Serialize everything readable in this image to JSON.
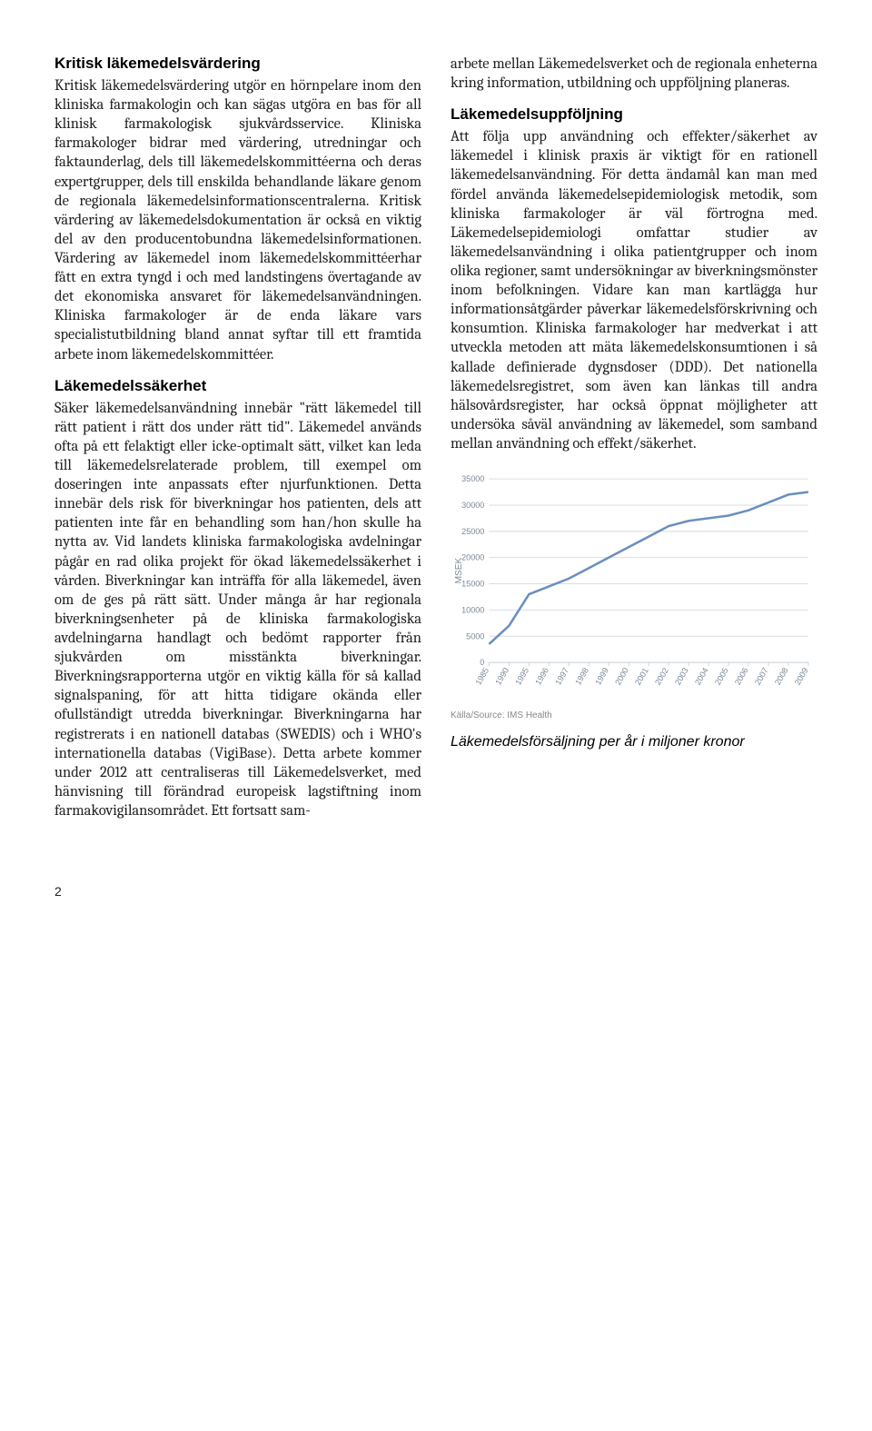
{
  "left": {
    "section1": {
      "heading": "Kritisk läkemedelsvärdering",
      "body": "Kritisk läkemedelsvärdering utgör en hörnpelare inom den kliniska farmakologin och kan sägas utgöra en bas för all klinisk farmakologisk sjukvårdsservice. Kliniska farmakologer bidrar med värdering, utredningar och faktaunderlag, dels till läkemedelskommittéerna och deras expertgrupper, dels till enskilda behandlande läkare genom de regionala läkemedelsinformationscentralerna. Kritisk värdering av läkemedelsdokumentation är också en viktig del av den producentobundna läkemedelsinformationen. Värdering av läkemedel inom läkemedelskommittéerhar fått en extra tyngd i och med landstingens övertagande av det ekonomiska ansvaret för läkemedelsanvändningen. Kliniska farmakologer är de enda läkare vars specialistutbildning bland annat syftar till ett framtida arbete inom läkemedelskommittéer."
    },
    "section2": {
      "heading": "Läkemedelssäkerhet",
      "body": "Säker läkemedelsanvändning innebär \"rätt läkemedel till rätt patient i rätt dos under rätt tid\". Läkemedel används ofta på ett felaktigt eller icke-optimalt sätt, vilket kan leda till läkemedelsrelaterade problem, till exempel om doseringen inte anpassats efter njurfunktionen. Detta innebär dels risk för biverkningar hos patienten, dels att patienten inte får en behandling som han/hon skulle ha nytta av. Vid landets kliniska farmakologiska avdelningar pågår en rad olika projekt för ökad läkemedelssäkerhet i vården. Biverkningar kan inträffa för alla läkemedel, även om de ges på rätt sätt. Under många år har regionala biverkningsenheter på de kliniska farmakologiska avdelningarna handlagt och bedömt rapporter från sjukvården om misstänkta biverkningar. Biverkningsrapporterna utgör en viktig källa för så kallad signalspaning, för att hitta tidigare okända eller ofullständigt utredda biverkningar. Biverkningarna har registrerats i en nationell databas (SWEDIS) och i WHO's internationella databas (VigiBase). Detta arbete kommer under 2012 att centraliseras till Läkemedelsverket, med hänvisning till förändrad europeisk lagstiftning inom farmakovigilansområdet. Ett fortsatt sam-"
    }
  },
  "right": {
    "cont": "arbete mellan Läkemedelsverket och de regionala enheterna kring information, utbildning och uppföljning planeras.",
    "section3": {
      "heading": "Läkemedelsuppföljning",
      "body": "Att följa upp användning och effekter/säkerhet av läkemedel i klinisk praxis är viktigt för en rationell läkemedelsanvändning. För detta ändamål kan man med fördel använda läkemedelsepidemiologisk metodik, som kliniska farmakologer är väl förtrogna med. Läkemedelsepidemiologi omfattar studier av läkemedelsanvändning i olika patientgrupper och inom olika regioner, samt undersökningar av biverkningsmönster inom befolkningen. Vidare kan man kartlägga hur informationsåtgärder påverkar läkemedelsförskrivning och konsumtion. Kliniska farmakologer har medverkat i att utveckla metoden att mäta läkemedelskonsumtionen i så kallade definierade dygnsdoser (DDD). Det nationella läkemedelsregistret, som även kan länkas till andra hälsovårdsregister, har också öppnat möjligheter att undersöka såväl användning av läkemedel, som samband mellan användning och effekt/säkerhet."
    },
    "chart": {
      "type": "line",
      "ylabel": "MSEK",
      "ylim": [
        0,
        35000
      ],
      "yticks": [
        0,
        5000,
        10000,
        15000,
        20000,
        25000,
        30000,
        35000
      ],
      "xticks": [
        "1985",
        "1990",
        "1995",
        "1996",
        "1997",
        "1998",
        "1999",
        "2000",
        "2001",
        "2002",
        "2003",
        "2004",
        "2005",
        "2006",
        "2007",
        "2008",
        "2009"
      ],
      "values": [
        3500,
        7000,
        13000,
        14500,
        16000,
        18000,
        20000,
        22000,
        24000,
        26000,
        27000,
        27500,
        28000,
        29000,
        30500,
        32000,
        32500
      ],
      "line_color": "#6a8fbf",
      "line_width": 2.5,
      "grid_color": "#d9dee3",
      "axis_color": "#cfd4d9",
      "tick_label_color": "#7a8a99",
      "tick_font_size": 9,
      "ylabel_font_size": 10,
      "background": "#ffffff",
      "source": "Källa/Source: IMS Health",
      "caption": "Läkemedelsförsäljning per år i miljoner kronor"
    }
  },
  "pagenum": "2"
}
